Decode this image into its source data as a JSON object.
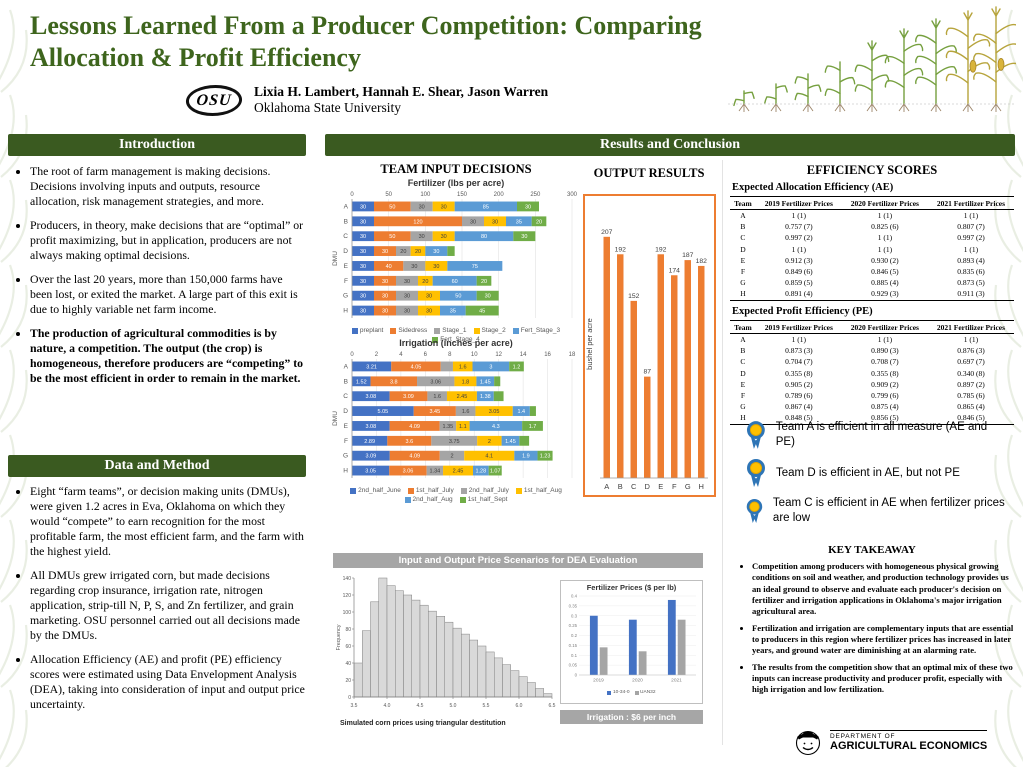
{
  "header": {
    "title": "Lessons Learned From a Producer Competition: Comparing Allocation & Profit Efficiency",
    "logo_text": "OSU",
    "authors": "Lixia H. Lambert, Hannah E. Shear, Jason Warren",
    "affiliation": "Oklahoma State University"
  },
  "sections": {
    "introduction": {
      "title": "Introduction",
      "bullets": [
        {
          "text": "The root of farm management is making decisions. Decisions involving inputs and outputs, resource allocation, risk management strategies, and more.",
          "bold": false
        },
        {
          "text": "Producers, in theory, make decisions that are “optimal” or profit maximizing, but in application, producers are not always making optimal decisions.",
          "bold": false
        },
        {
          "text": "Over the last 20 years, more than 150,000 farms have been lost, or exited the market. A large part of this exit is due to highly variable net farm income.",
          "bold": false
        },
        {
          "text": "The production of agricultural commodities is by nature, a competition. The output (the crop) is homogeneous, therefore producers are “competing” to be the most efficient in order to remain in the market.",
          "bold": true
        }
      ]
    },
    "data_method": {
      "title": "Data and Method",
      "bullets": [
        {
          "text": "Eight “farm teams”, or decision making units (DMUs), were given 1.2 acres in Eva, Oklahoma on which they would “compete” to earn recognition for the most profitable farm, the most efficient farm, and the farm with the highest yield.",
          "bold": false
        },
        {
          "text": "All DMUs grew irrigated corn, but made decisions regarding crop insurance, irrigation rate, nitrogen application, strip-till N, P, S, and Zn fertilizer, and grain marketing. OSU personnel carried out all decisions made by the DMUs.",
          "bold": false
        },
        {
          "text": "Allocation Efficiency (AE) and profit (PE) efficiency scores were estimated using Data Envelopment Analysis (DEA), taking into consideration of input and output price uncertainty.",
          "bold": false
        }
      ]
    },
    "results": {
      "title": "Results and Conclusion"
    }
  },
  "results_panel": {
    "team_input_title": "TEAM INPUT DECISIONS",
    "output_title": "OUTPUT RESULTS",
    "efficiency_title": "EFFICIENCY SCORES",
    "price_header": "Input and Output Price Scenarios  for DEA Evaluation",
    "hist_caption": "Simulated corn prices using triangular destitution",
    "irrigation_note": "Irrigation : $6 per inch",
    "ae_heading": "Expected Allocation  Efficiency  (AE)",
    "pe_heading": "Expected Profit Efficiency (PE)",
    "key_takeaway_title": "KEY TAKEAWAY"
  },
  "tables": {
    "ae": {
      "headers": [
        "Team",
        "2019 Fertilizer Prices",
        "2020 Fertilizer Prices",
        "2021 Fertilizer Prices"
      ],
      "rows": [
        [
          "A",
          "1 (1)",
          "1 (1)",
          "1 (1)"
        ],
        [
          "B",
          "0.757 (7)",
          "0.825 (6)",
          "0.807 (7)"
        ],
        [
          "C",
          "0.997 (2)",
          "1 (1)",
          "0.997 (2)"
        ],
        [
          "D",
          "1 (1)",
          "1 (1)",
          "1 (1)"
        ],
        [
          "E",
          "0.912 (3)",
          "0.930 (2)",
          "0.893 (4)"
        ],
        [
          "F",
          "0.849 (6)",
          "0.846 (5)",
          "0.835 (6)"
        ],
        [
          "G",
          "0.859 (5)",
          "0.885 (4)",
          "0.873 (5)"
        ],
        [
          "H",
          "0.891 (4)",
          "0.929 (3)",
          "0.911 (3)"
        ]
      ]
    },
    "pe": {
      "headers": [
        "Team",
        "2019 Fertilizer Prices",
        "2020 Fertilizer Prices",
        "2021 Fertilizer Prices"
      ],
      "rows": [
        [
          "A",
          "1 (1)",
          "1 (1)",
          "1 (1)"
        ],
        [
          "B",
          "0.873 (3)",
          "0.890 (3)",
          "0.876 (3)"
        ],
        [
          "C",
          "0.704 (7)",
          "0.708 (7)",
          "0.697 (7)"
        ],
        [
          "D",
          "0.355 (8)",
          "0.355 (8)",
          "0.340 (8)"
        ],
        [
          "E",
          "0.905 (2)",
          "0.909 (2)",
          "0.897 (2)"
        ],
        [
          "F",
          "0.789 (6)",
          "0.799 (6)",
          "0.785 (6)"
        ],
        [
          "G",
          "0.867 (4)",
          "0.875 (4)",
          "0.865 (4)"
        ],
        [
          "H",
          "0.848 (5)",
          "0.856 (5)",
          "0.846 (5)"
        ]
      ]
    }
  },
  "ribbons": [
    {
      "text": "Team A is efficient in all measure (AE and PE)"
    },
    {
      "text": "Team D is efficient in AE, but not PE"
    },
    {
      "text": "Team C is efficient in AE when fertilizer prices are low"
    }
  ],
  "key_takeaway": {
    "bullets": [
      {
        "text": "Competition among producers with homogeneous physical growing conditions on soil and weather, and production technology provides us an ideal ground to observe and evaluate each producer's decision on fertilizer and irrigation applications in Oklahoma's major irrigation agricultural area.",
        "bold": false
      },
      {
        "text": "Fertilization and irrigation are complementary inputs that are essential to producers in this region where fertilizer prices has increased in later years, and ground water are diminishing at an alarming rate.",
        "bold": false
      },
      {
        "text": "The results from the competition show that an optimal mix of these two inputs can increase productivity and producer profit, especially with high irrigation and low fertilization.",
        "bold": false
      }
    ]
  },
  "footer": {
    "dept_line1": "DEPARTMENT OF",
    "dept_line2": "AGRICULTURAL ECONOMICS"
  },
  "chart_data": [
    {
      "id": "fertilizer_decisions",
      "type": "bar",
      "render": "stackedh",
      "stacked": true,
      "orientation": "horizontal",
      "title": "Fertilizer (lbs per acre)",
      "ylabel": "DMU",
      "categories": [
        "A",
        "B",
        "C",
        "D",
        "E",
        "F",
        "G",
        "H"
      ],
      "xlim": [
        0,
        300
      ],
      "xticks": [
        0,
        50,
        100,
        150,
        200,
        250,
        300
      ],
      "series": [
        {
          "name": "preplant",
          "color": "#4472c4",
          "values": [
            30,
            30,
            30,
            30,
            30,
            30,
            30,
            30
          ]
        },
        {
          "name": "Sidedress",
          "color": "#ed7d31",
          "values": [
            50,
            120,
            50,
            30,
            40,
            30,
            30,
            30
          ]
        },
        {
          "name": "Stage_1",
          "color": "#a5a5a5",
          "values": [
            30,
            30,
            30,
            20,
            30,
            30,
            30,
            30
          ]
        },
        {
          "name": "Stage_2",
          "color": "#ffc000",
          "values": [
            30,
            30,
            30,
            20,
            30,
            20,
            30,
            30
          ]
        },
        {
          "name": "Fert_Stage_3",
          "color": "#5b9bd5",
          "values": [
            85,
            35,
            80,
            30,
            75,
            60,
            50,
            35
          ]
        },
        {
          "name": "Fert_Stage_4",
          "color": "#70ad47",
          "values": [
            30,
            20,
            30,
            10,
            0,
            20,
            30,
            45
          ]
        }
      ]
    },
    {
      "id": "irrigation_decisions",
      "type": "bar",
      "render": "stackedh",
      "stacked": true,
      "orientation": "horizontal",
      "title": "Irrigation (inches per acre)",
      "ylabel": "DMU",
      "categories": [
        "A",
        "B",
        "C",
        "D",
        "E",
        "F",
        "G",
        "H"
      ],
      "xlim": [
        0,
        18
      ],
      "xticks": [
        0,
        2,
        4,
        6,
        8,
        10,
        12,
        14,
        16,
        18
      ],
      "series": [
        {
          "name": "2nd_half_June",
          "color": "#4472c4",
          "values": [
            3.21,
            1.52,
            3.08,
            5.05,
            3.08,
            2.89,
            3.09,
            3.05
          ]
        },
        {
          "name": "1st_half_July",
          "color": "#ed7d31",
          "values": [
            4.05,
            3.8,
            3.09,
            3.45,
            4.09,
            3.6,
            4.09,
            3.06
          ]
        },
        {
          "name": "2nd_half_July",
          "color": "#a5a5a5",
          "values": [
            1.0,
            3.06,
            1.6,
            1.6,
            1.35,
            3.75,
            2.0,
            1.34
          ]
        },
        {
          "name": "1st_half_Aug",
          "color": "#ffc000",
          "values": [
            1.6,
            1.8,
            2.45,
            3.05,
            1.1,
            2.0,
            4.1,
            2.45
          ]
        },
        {
          "name": "2nd_half_Aug",
          "color": "#5b9bd5",
          "values": [
            3.0,
            1.45,
            1.38,
            1.4,
            4.3,
            1.45,
            1.9,
            1.28
          ]
        },
        {
          "name": "1st_half_Sept",
          "color": "#70ad47",
          "values": [
            1.2,
            0.5,
            0.8,
            0.5,
            1.7,
            0.8,
            1.23,
            1.07
          ]
        }
      ]
    },
    {
      "id": "output_results",
      "type": "bar",
      "render": "barv",
      "title": "OUTPUT RESULTS",
      "ylabel": "bushel per acre",
      "categories": [
        "A",
        "B",
        "C",
        "D",
        "E",
        "F",
        "G",
        "H"
      ],
      "values": [
        207,
        192,
        152,
        87,
        192,
        174,
        187,
        182
      ],
      "ylim": [
        0,
        230
      ],
      "color": "#ed7d31"
    },
    {
      "id": "simulated_corn_prices",
      "type": "bar",
      "render": "hist",
      "title": "Simulated corn prices using triangular destitution",
      "ylabel": "Frequency",
      "xlim": [
        3.5,
        6.5
      ],
      "xticks": [
        3.5,
        4.0,
        4.5,
        5.0,
        5.5,
        6.0,
        6.5
      ],
      "ylim": [
        0,
        140
      ],
      "yticks": [
        0,
        20,
        40,
        60,
        80,
        100,
        120,
        140
      ],
      "values": [
        40,
        78,
        112,
        140,
        131,
        125,
        120,
        114,
        108,
        101,
        95,
        88,
        81,
        74,
        67,
        60,
        53,
        46,
        38,
        31,
        24,
        17,
        10,
        4
      ]
    },
    {
      "id": "fertilizer_prices",
      "type": "bar",
      "render": "groupedbar",
      "title": "Fertilizer Prices ($ per lb)",
      "categories": [
        "2019",
        "2020",
        "2021"
      ],
      "ylim": [
        0,
        0.4
      ],
      "yticks": [
        0,
        0.05,
        0.1,
        0.15,
        0.2,
        0.25,
        0.3,
        0.35,
        0.4
      ],
      "series": [
        {
          "name": "10-34-0",
          "color": "#4472c4",
          "values": [
            0.3,
            0.28,
            0.38
          ]
        },
        {
          "name": "UAN32",
          "color": "#a5a5a5",
          "values": [
            0.14,
            0.12,
            0.28
          ]
        }
      ]
    }
  ]
}
